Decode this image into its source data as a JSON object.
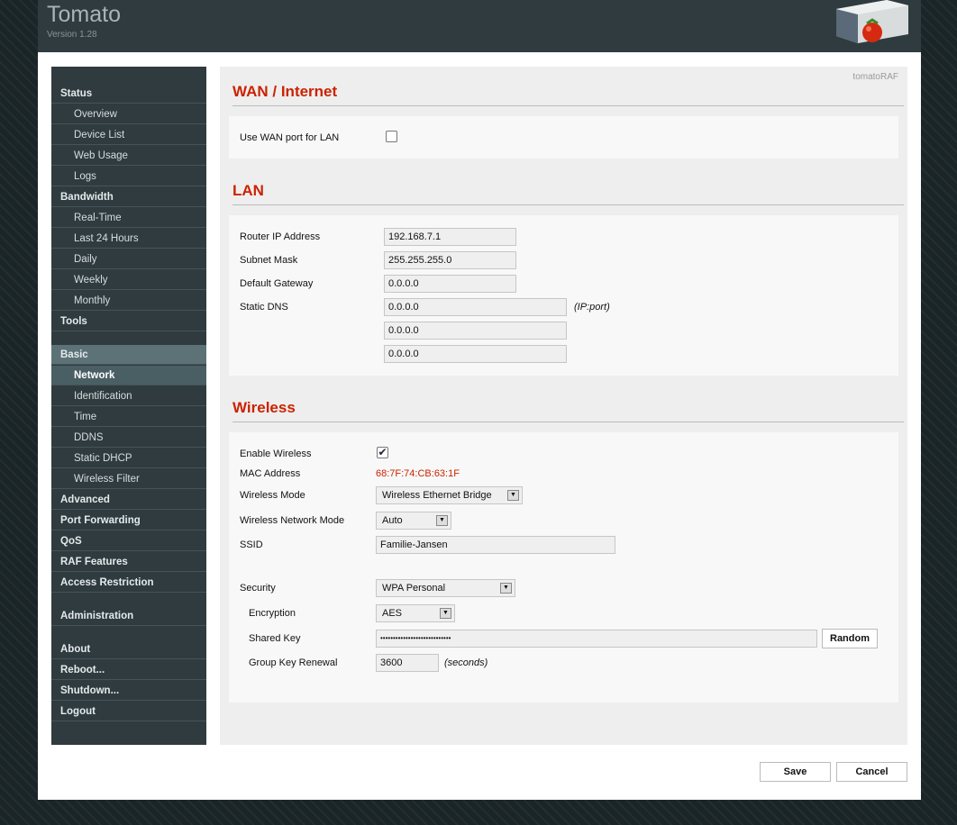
{
  "header": {
    "title": "Tomato",
    "version": "Version 1.28"
  },
  "brand": "tomatoRAF",
  "sidebar": {
    "items": [
      {
        "label": "Status",
        "type": "h"
      },
      {
        "label": "Overview",
        "type": "s"
      },
      {
        "label": "Device List",
        "type": "s"
      },
      {
        "label": "Web Usage",
        "type": "s"
      },
      {
        "label": "Logs",
        "type": "s"
      },
      {
        "label": "Bandwidth",
        "type": "h"
      },
      {
        "label": "Real-Time",
        "type": "s"
      },
      {
        "label": "Last 24 Hours",
        "type": "s"
      },
      {
        "label": "Daily",
        "type": "s"
      },
      {
        "label": "Weekly",
        "type": "s"
      },
      {
        "label": "Monthly",
        "type": "s"
      },
      {
        "label": "Tools",
        "type": "h"
      },
      {
        "label": "Basic",
        "type": "h"
      },
      {
        "label": "Network",
        "type": "s",
        "active": true
      },
      {
        "label": "Identification",
        "type": "s"
      },
      {
        "label": "Time",
        "type": "s"
      },
      {
        "label": "DDNS",
        "type": "s"
      },
      {
        "label": "Static DHCP",
        "type": "s"
      },
      {
        "label": "Wireless Filter",
        "type": "s"
      },
      {
        "label": "Advanced",
        "type": "h"
      },
      {
        "label": "Port Forwarding",
        "type": "h"
      },
      {
        "label": "QoS",
        "type": "h"
      },
      {
        "label": "RAF Features",
        "type": "h"
      },
      {
        "label": "Access Restriction",
        "type": "h"
      },
      {
        "label": "Administration",
        "type": "h"
      },
      {
        "label": "About",
        "type": "h"
      },
      {
        "label": "Reboot...",
        "type": "h"
      },
      {
        "label": "Shutdown...",
        "type": "h"
      },
      {
        "label": "Logout",
        "type": "h"
      }
    ]
  },
  "wan": {
    "title": "WAN / Internet",
    "use_wan_label": "Use WAN port for LAN",
    "use_wan_checked": false
  },
  "lan": {
    "title": "LAN",
    "router_ip_label": "Router IP Address",
    "router_ip": "192.168.7.1",
    "subnet_label": "Subnet Mask",
    "subnet": "255.255.255.0",
    "gateway_label": "Default Gateway",
    "gateway": "0.0.0.0",
    "dns_label": "Static DNS",
    "dns": [
      "0.0.0.0",
      "0.0.0.0",
      "0.0.0.0"
    ],
    "dns_note": "(IP:port)"
  },
  "wireless": {
    "title": "Wireless",
    "enable_label": "Enable Wireless",
    "enable_checked": true,
    "mac_label": "MAC Address",
    "mac": "68:7F:74:CB:63:1F",
    "mode_label": "Wireless Mode",
    "mode": "Wireless Ethernet Bridge",
    "net_mode_label": "Wireless Network Mode",
    "net_mode": "Auto",
    "ssid_label": "SSID",
    "ssid": "Familie-Jansen",
    "security_label": "Security",
    "security": "WPA Personal",
    "encryption_label": "Encryption",
    "encryption": "AES",
    "key_label": "Shared Key",
    "key": "••••••••••••••••••••••••••••",
    "random_label": "Random",
    "renewal_label": "Group Key Renewal",
    "renewal": "3600",
    "renewal_note": "(seconds)"
  },
  "colors": {
    "accent": "#cc2200",
    "mac": "#cc2200"
  },
  "footer": {
    "save_label": "Save",
    "cancel_label": "Cancel"
  }
}
